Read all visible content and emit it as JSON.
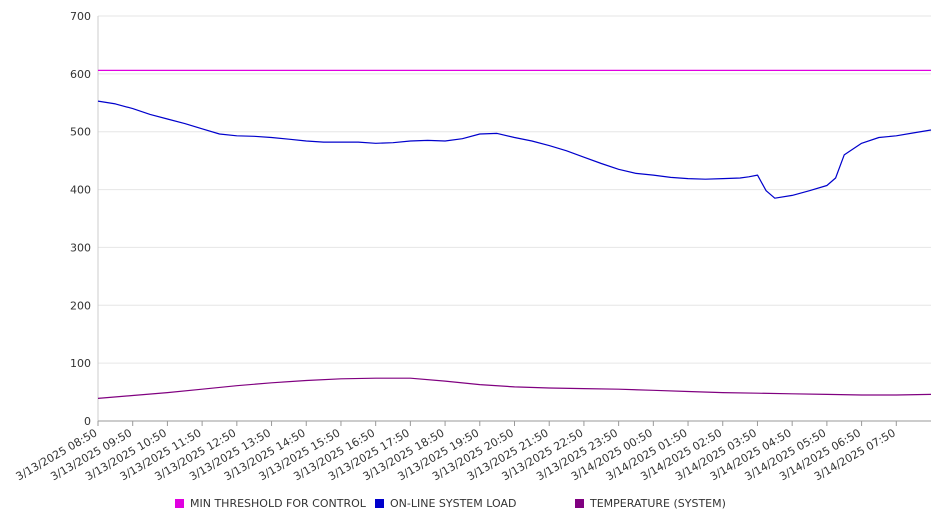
{
  "chart_data": {
    "type": "line",
    "title": "",
    "xlabel": "",
    "ylabel": "",
    "ylim": [
      0,
      700
    ],
    "yticks": [
      0,
      100,
      200,
      300,
      400,
      500,
      600,
      700
    ],
    "grid": true,
    "legend_position": "bottom",
    "x_tick_labels": [
      "3/13/2025 08:50",
      "3/13/2025 09:50",
      "3/13/2025 10:50",
      "3/13/2025 11:50",
      "3/13/2025 12:50",
      "3/13/2025 13:50",
      "3/13/2025 14:50",
      "3/13/2025 15:50",
      "3/13/2025 16:50",
      "3/13/2025 17:50",
      "3/13/2025 18:50",
      "3/13/2025 19:50",
      "3/13/2025 20:50",
      "3/13/2025 21:50",
      "3/13/2025 22:50",
      "3/13/2025 23:50",
      "3/14/2025 00:50",
      "3/14/2025 01:50",
      "3/14/2025 02:50",
      "3/14/2025 03:50",
      "3/14/2025 04:50",
      "3/14/2025 05:50",
      "3/14/2025 06:50",
      "3/14/2025 07:50"
    ],
    "series": [
      {
        "name": "MIN THRESHOLD FOR CONTROL",
        "color": "#e000e0",
        "x": [
          "3/13/2025 08:50",
          "3/14/2025 08:50"
        ],
        "values": [
          606,
          606
        ]
      },
      {
        "name": "ON-LINE SYSTEM LOAD",
        "color": "#0000cc",
        "x": [
          "3/13/2025 08:50",
          "3/13/2025 09:20",
          "3/13/2025 09:50",
          "3/13/2025 10:20",
          "3/13/2025 10:50",
          "3/13/2025 11:20",
          "3/13/2025 11:50",
          "3/13/2025 12:20",
          "3/13/2025 12:50",
          "3/13/2025 13:20",
          "3/13/2025 13:50",
          "3/13/2025 14:20",
          "3/13/2025 14:50",
          "3/13/2025 15:20",
          "3/13/2025 15:50",
          "3/13/2025 16:20",
          "3/13/2025 16:50",
          "3/13/2025 17:20",
          "3/13/2025 17:50",
          "3/13/2025 18:20",
          "3/13/2025 18:50",
          "3/13/2025 19:20",
          "3/13/2025 19:50",
          "3/13/2025 20:20",
          "3/13/2025 20:50",
          "3/13/2025 21:20",
          "3/13/2025 21:50",
          "3/13/2025 22:20",
          "3/13/2025 22:50",
          "3/13/2025 23:20",
          "3/13/2025 23:50",
          "3/14/2025 00:20",
          "3/14/2025 00:50",
          "3/14/2025 01:20",
          "3/14/2025 01:50",
          "3/14/2025 02:20",
          "3/14/2025 02:50",
          "3/14/2025 03:20",
          "3/14/2025 03:35",
          "3/14/2025 03:50",
          "3/14/2025 04:05",
          "3/14/2025 04:20",
          "3/14/2025 04:50",
          "3/14/2025 05:20",
          "3/14/2025 05:50",
          "3/14/2025 06:05",
          "3/14/2025 06:20",
          "3/14/2025 06:50",
          "3/14/2025 07:20",
          "3/14/2025 07:50",
          "3/14/2025 08:20",
          "3/14/2025 08:50"
        ],
        "values": [
          553,
          548,
          540,
          530,
          522,
          514,
          505,
          496,
          493,
          492,
          490,
          487,
          484,
          482,
          482,
          482,
          480,
          481,
          484,
          485,
          484,
          488,
          496,
          497,
          490,
          484,
          476,
          467,
          456,
          445,
          435,
          428,
          425,
          421,
          419,
          418,
          419,
          420,
          422,
          425,
          398,
          385,
          390,
          398,
          407,
          420,
          460,
          480,
          490,
          493,
          498,
          503
        ]
      },
      {
        "name": "TEMPERATURE (SYSTEM)",
        "color": "#800080",
        "x": [
          "3/13/2025 08:50",
          "3/13/2025 09:50",
          "3/13/2025 10:50",
          "3/13/2025 11:50",
          "3/13/2025 12:50",
          "3/13/2025 13:50",
          "3/13/2025 14:50",
          "3/13/2025 15:50",
          "3/13/2025 16:50",
          "3/13/2025 17:50",
          "3/13/2025 18:50",
          "3/13/2025 19:50",
          "3/13/2025 20:50",
          "3/13/2025 21:50",
          "3/13/2025 22:50",
          "3/13/2025 23:50",
          "3/14/2025 00:50",
          "3/14/2025 01:50",
          "3/14/2025 02:50",
          "3/14/2025 03:50",
          "3/14/2025 04:50",
          "3/14/2025 05:50",
          "3/14/2025 06:50",
          "3/14/2025 07:50",
          "3/14/2025 08:50"
        ],
        "values": [
          39,
          44,
          49,
          55,
          61,
          66,
          70,
          73,
          74,
          74,
          69,
          63,
          59,
          57,
          56,
          55,
          53,
          51,
          49,
          48,
          47,
          46,
          45,
          45,
          46
        ]
      }
    ]
  }
}
